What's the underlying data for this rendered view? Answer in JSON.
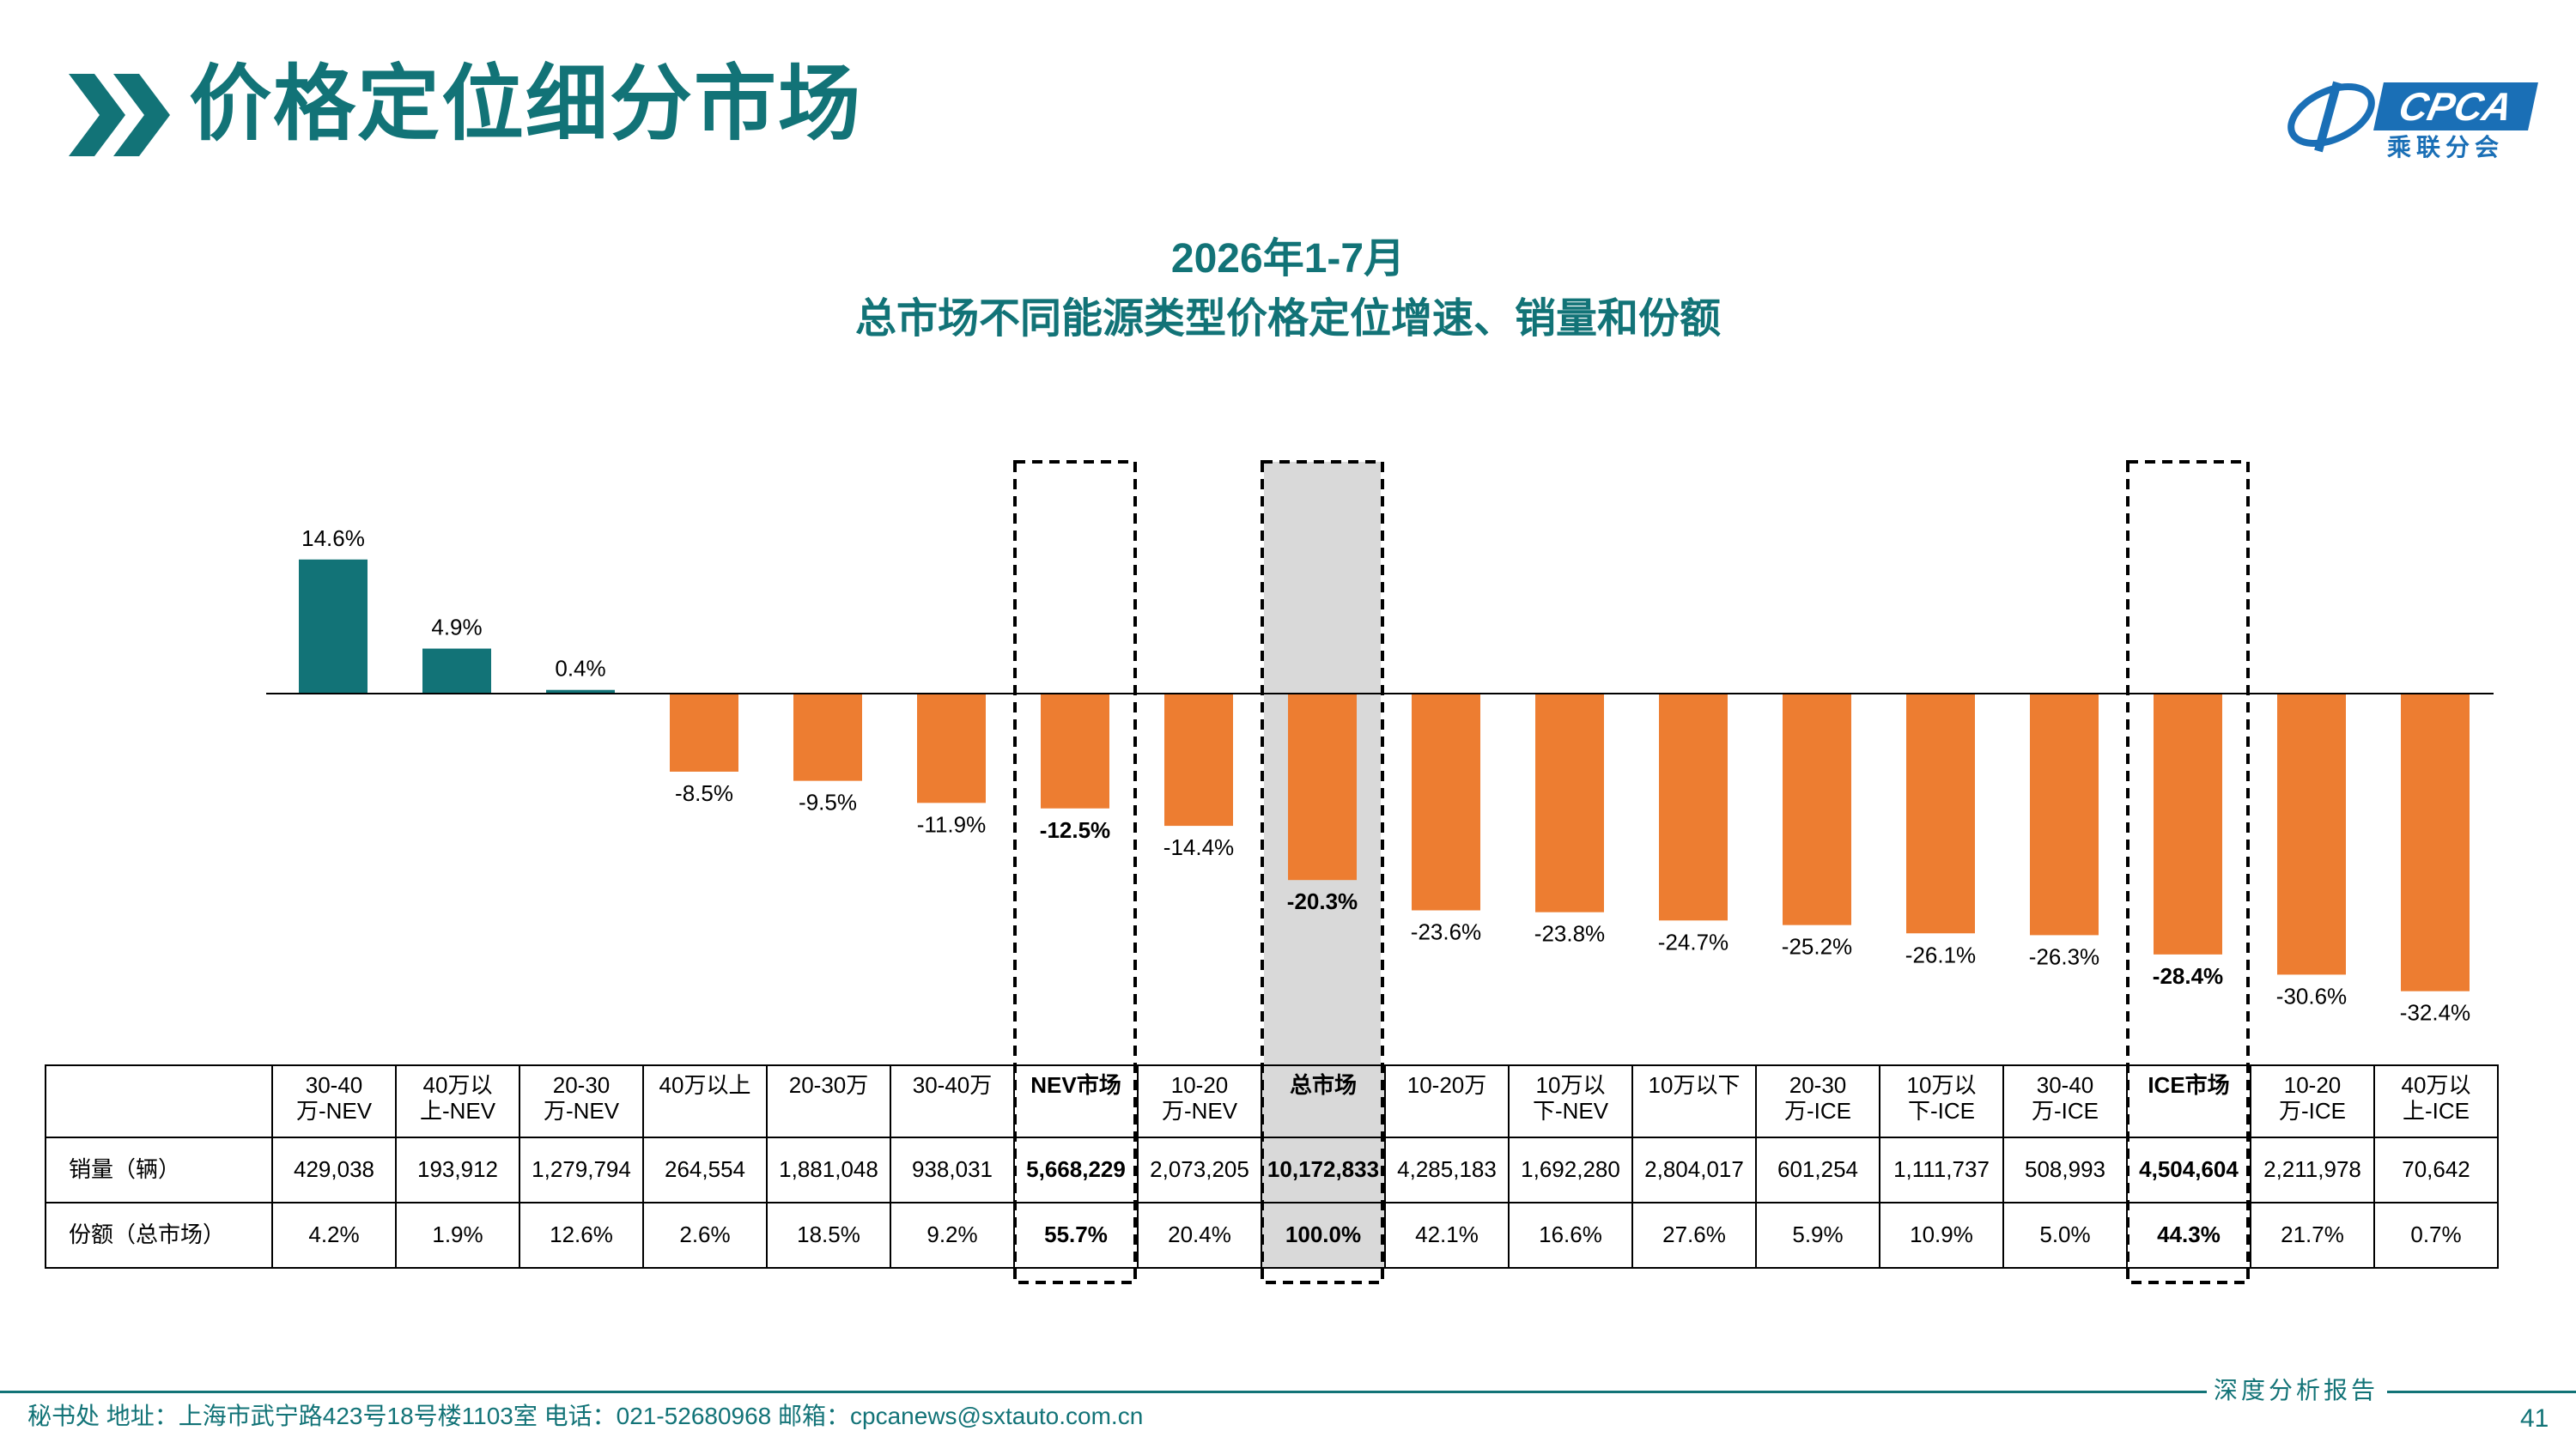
{
  "header": {
    "title": "价格定位细分市场",
    "logo_text": "CPCA",
    "logo_sub": "乘联分会"
  },
  "colors": {
    "teal": "#127377",
    "orange": "#ed7d31",
    "highlight_fill": "#d9d9d9"
  },
  "chart_data": {
    "type": "bar",
    "title": "2026年1-7月",
    "subtitle": "总市场不同能源类型价格定位增速、销量和份额",
    "categories": [
      "30-40万-NEV",
      "40万以上-NEV",
      "20-30万-NEV",
      "40万以上",
      "20-30万",
      "30-40万",
      "NEV市场",
      "10-20万-NEV",
      "总市场",
      "10-20万",
      "10万以下-NEV",
      "10万以下",
      "20-30万-ICE",
      "10万以下-ICE",
      "30-40万-ICE",
      "ICE市场",
      "10-20万-ICE",
      "40万以上-ICE"
    ],
    "values": [
      14.6,
      4.9,
      0.4,
      -8.5,
      -9.5,
      -11.9,
      -12.5,
      -14.4,
      -20.3,
      -23.6,
      -23.8,
      -24.7,
      -25.2,
      -26.1,
      -26.3,
      -28.4,
      -30.6,
      -32.4
    ],
    "value_labels": [
      "14.6%",
      "4.9%",
      "0.4%",
      "-8.5%",
      "-9.5%",
      "-11.9%",
      "-12.5%",
      "-14.4%",
      "-20.3%",
      "-23.6%",
      "-23.8%",
      "-24.7%",
      "-25.2%",
      "-26.1%",
      "-26.3%",
      "-28.4%",
      "-30.6%",
      "-32.4%"
    ],
    "highlighted": [
      "NEV市场",
      "总市场",
      "ICE市场"
    ],
    "shaded": [
      "总市场"
    ],
    "positive_color": "#127377",
    "negative_color": "#ed7d31",
    "ylim": [
      -35,
      16
    ]
  },
  "table": {
    "header_labels": [
      [
        "30-40",
        "万-NEV"
      ],
      [
        "40万以",
        "上-NEV"
      ],
      [
        "20-30",
        "万-NEV"
      ],
      [
        "40万以上"
      ],
      [
        "20-30万"
      ],
      [
        "30-40万"
      ],
      [
        "NEV市场"
      ],
      [
        "10-20",
        "万-NEV"
      ],
      [
        "总市场"
      ],
      [
        "10-20万"
      ],
      [
        "10万以",
        "下-NEV"
      ],
      [
        "10万以下"
      ],
      [
        "20-30",
        "万-ICE"
      ],
      [
        "10万以",
        "下-ICE"
      ],
      [
        "30-40",
        "万-ICE"
      ],
      [
        "ICE市场"
      ],
      [
        "10-20",
        "万-ICE"
      ],
      [
        "40万以",
        "上-ICE"
      ]
    ],
    "sales_label": "销量（辆）",
    "sales": [
      "429,038",
      "193,912",
      "1,279,794",
      "264,554",
      "1,881,048",
      "938,031",
      "5,668,229",
      "2,073,205",
      "10,172,833",
      "4,285,183",
      "1,692,280",
      "2,804,017",
      "601,254",
      "1,111,737",
      "508,993",
      "4,504,604",
      "2,211,978",
      "70,642"
    ],
    "share_label": "份额（总市场）",
    "share": [
      "4.2%",
      "1.9%",
      "12.6%",
      "2.6%",
      "18.5%",
      "9.2%",
      "55.7%",
      "20.4%",
      "100.0%",
      "42.1%",
      "16.6%",
      "27.6%",
      "5.9%",
      "10.9%",
      "5.0%",
      "44.3%",
      "21.7%",
      "0.7%"
    ]
  },
  "footer": {
    "text": "秘书处   地址：上海市武宁路423号18号楼1103室  电话：021-52680968   邮箱：cpcanews@sxtauto.com.cn",
    "report_label": "深度分析报告",
    "page_number": "41"
  }
}
